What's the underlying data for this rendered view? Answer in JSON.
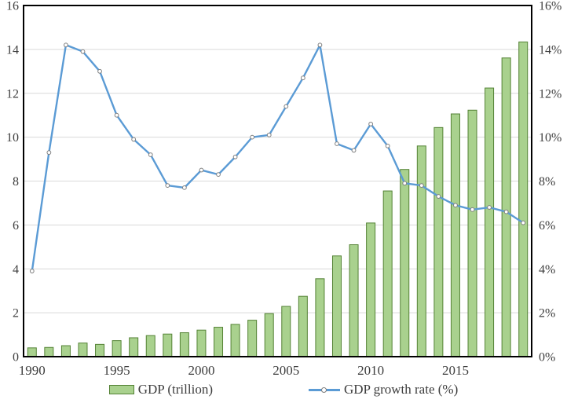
{
  "chart_data": {
    "type": "combo-bar-line",
    "title": "",
    "xlabel": "",
    "ylabel_left": "",
    "ylabel_right": "",
    "categories": [
      1990,
      1991,
      1992,
      1993,
      1994,
      1995,
      1996,
      1997,
      1998,
      1999,
      2000,
      2001,
      2002,
      2003,
      2004,
      2005,
      2006,
      2007,
      2008,
      2009,
      2010,
      2011,
      2012,
      2013,
      2014,
      2015,
      2016,
      2017,
      2018,
      2019
    ],
    "series": [
      {
        "name": "GDP (trillion)",
        "type": "bar",
        "axis": "left",
        "values": [
          0.4,
          0.42,
          0.5,
          0.62,
          0.56,
          0.73,
          0.86,
          0.96,
          1.03,
          1.09,
          1.21,
          1.34,
          1.47,
          1.66,
          1.96,
          2.29,
          2.75,
          3.55,
          4.59,
          5.1,
          6.09,
          7.55,
          8.53,
          9.6,
          10.44,
          11.06,
          11.23,
          12.24,
          13.61,
          14.34
        ]
      },
      {
        "name": "GDP growth rate (%)",
        "type": "line",
        "axis": "right",
        "values": [
          3.9,
          9.3,
          14.2,
          13.9,
          13.0,
          11.0,
          9.9,
          9.2,
          7.8,
          7.7,
          8.5,
          8.3,
          9.1,
          10.0,
          10.1,
          11.4,
          12.7,
          14.2,
          9.7,
          9.4,
          10.6,
          9.6,
          7.9,
          7.8,
          7.3,
          6.9,
          6.7,
          6.8,
          6.6,
          6.1
        ]
      }
    ],
    "left_axis": {
      "min": 0,
      "max": 16,
      "tick_step": 2,
      "ticks": [
        "0",
        "2",
        "4",
        "6",
        "8",
        "10",
        "12",
        "14",
        "16"
      ]
    },
    "right_axis": {
      "min": 0,
      "max": 16,
      "tick_step": 2,
      "ticks": [
        "0%",
        "2%",
        "4%",
        "6%",
        "8%",
        "10%",
        "12%",
        "14%",
        "16%"
      ]
    },
    "x_ticks": [
      "1990",
      "1995",
      "2000",
      "2005",
      "2010",
      "2015"
    ],
    "grid": true,
    "legend_position": "bottom",
    "colors": {
      "bar_fill": "#a9d18e",
      "bar_stroke": "#548235",
      "line": "#5b9bd5",
      "marker_fill": "#ffffff",
      "marker_stroke": "#7f7f7f",
      "gridline": "#d9d9d9",
      "plot_border": "#000000",
      "text": "#3d3d3d"
    }
  }
}
